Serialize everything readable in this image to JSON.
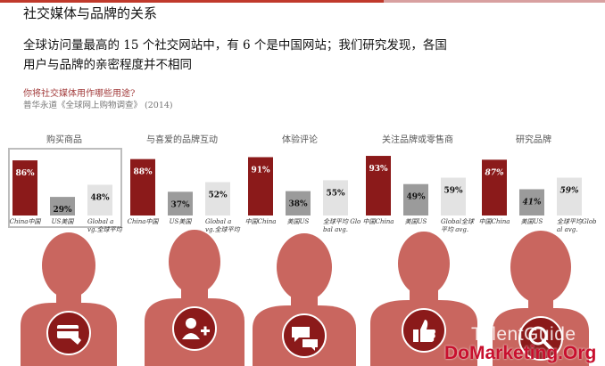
{
  "header": {
    "title": "社交媒体与品牌的关系",
    "subtitle_line1": "全球访问量最高的 15 个社交网站中，有 6 个是中国网站；我们研究发现，各国",
    "subtitle_line2": "用户与品牌的亲密程度并不相同",
    "question": "你将社交媒体用作哪些用途?",
    "source": "普华永道《全球网上购物调查》 (2014)"
  },
  "watermark": {
    "line1": "TalentGuide",
    "line2": "DoMarketing.Org"
  },
  "colors": {
    "china": "#8b1a1a",
    "us": "#9b9b9b",
    "global": "#e3e3e3",
    "silhouette": "#c9665f",
    "circle": "#8b1a1a",
    "highlight": "#bdbdbd"
  },
  "chart_data": [
    {
      "type": "bar",
      "title": "购买商品",
      "categories": [
        "China中国",
        "US美国",
        "Global avg.全球平均"
      ],
      "values": [
        86,
        29,
        48
      ],
      "labels": [
        "86%",
        "29%",
        "48%"
      ],
      "ylim": [
        0,
        100
      ],
      "icon": "credit-card-icon",
      "highlighted": true
    },
    {
      "type": "bar",
      "title": "与喜爱的品牌互动",
      "categories": [
        "China中国",
        "US美国",
        "Global avg.全球平均"
      ],
      "values": [
        88,
        37,
        52
      ],
      "labels": [
        "88%",
        "37%",
        "52%"
      ],
      "ylim": [
        0,
        100
      ],
      "icon": "add-user-icon"
    },
    {
      "type": "bar",
      "title": "体验评论",
      "categories": [
        "中国China",
        "美国US",
        "全球平均 Global avg."
      ],
      "values": [
        91,
        38,
        55
      ],
      "labels": [
        "91%",
        "38%",
        "55%"
      ],
      "ylim": [
        0,
        100
      ],
      "icon": "chat-bubbles-icon"
    },
    {
      "type": "bar",
      "title": "关注品牌或零售商",
      "categories": [
        "中国China",
        "美国US",
        "Global全球平均 avg."
      ],
      "values": [
        93,
        49,
        59
      ],
      "labels": [
        "93%",
        "49%",
        "59%"
      ],
      "ylim": [
        0,
        100
      ],
      "icon": "thumbs-up-icon"
    },
    {
      "type": "bar",
      "title": "研究品牌",
      "categories": [
        "中国China",
        "美国US",
        "全球平均Global avg."
      ],
      "values": [
        87,
        41,
        59
      ],
      "labels": [
        "87%",
        "41%",
        "59%"
      ],
      "ylim": [
        0,
        100
      ],
      "icon": "magnifier-icon"
    }
  ]
}
